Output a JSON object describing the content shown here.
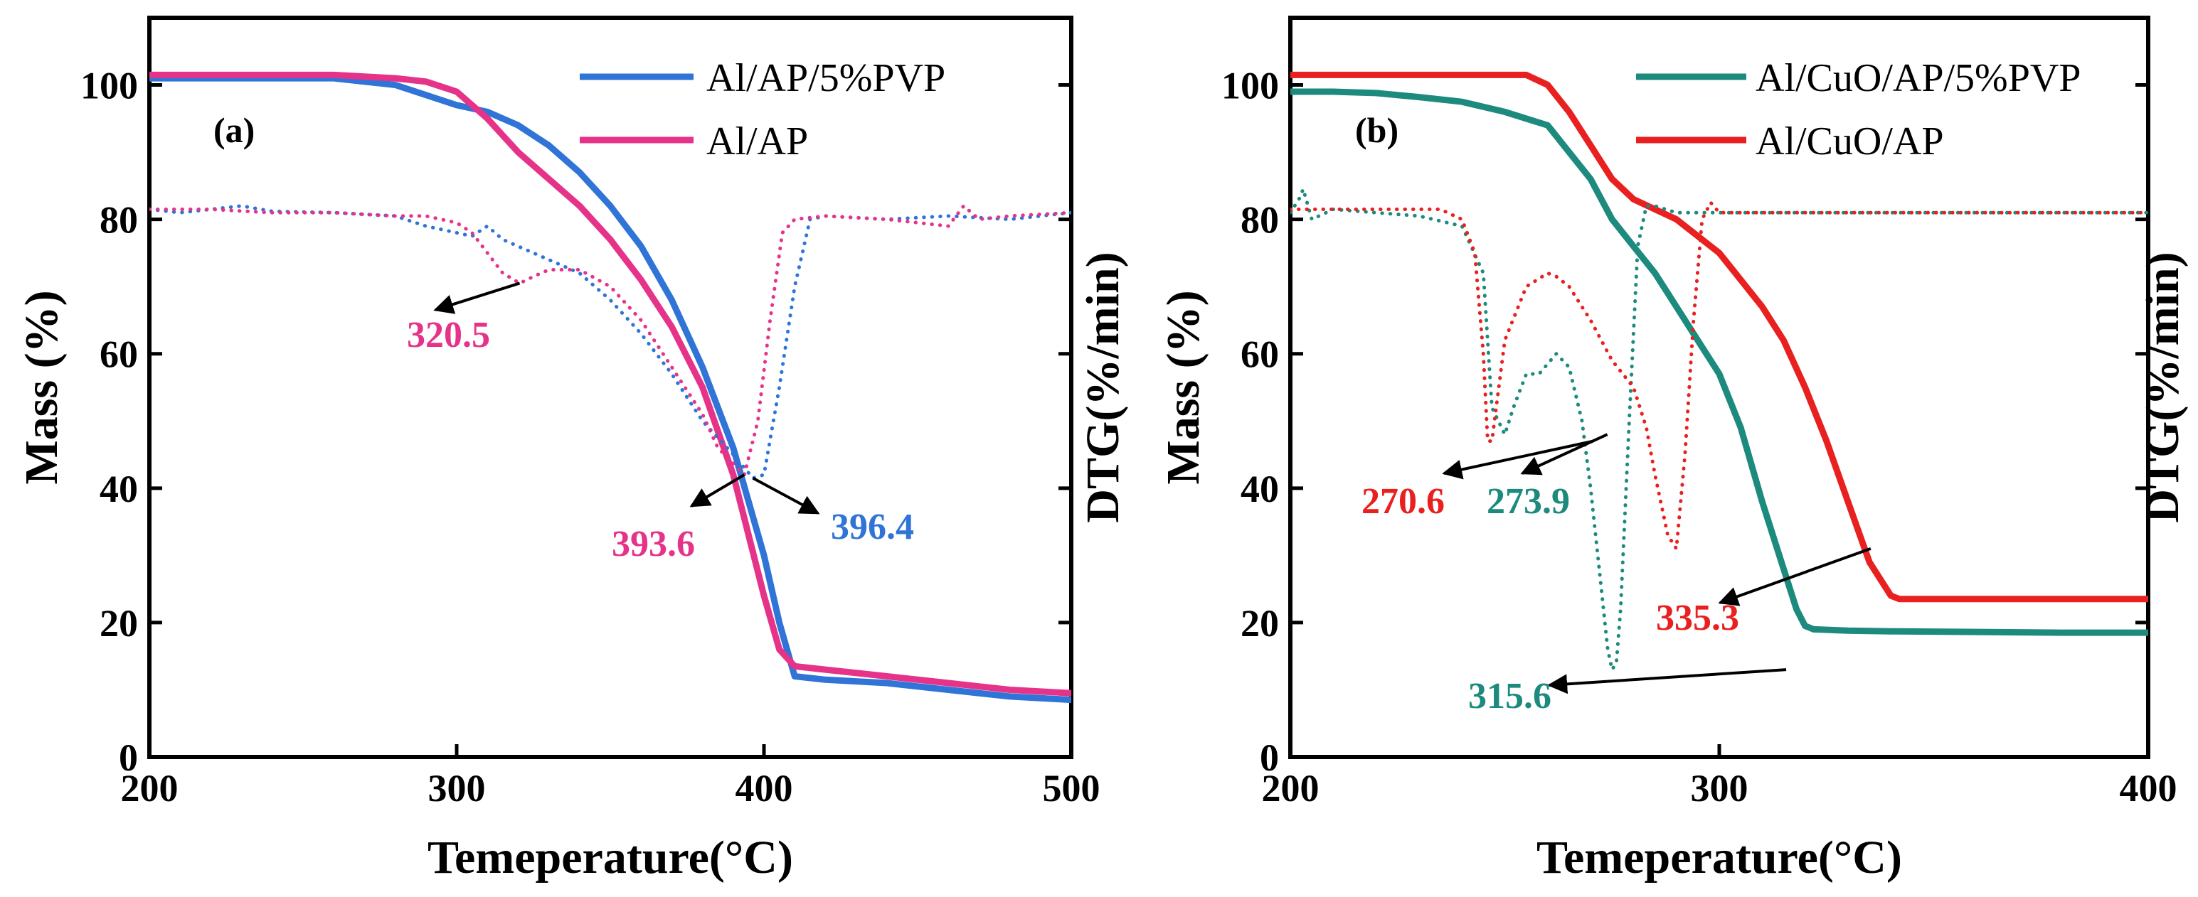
{
  "chart_data": [
    {
      "type": "line",
      "panel_label": "(a)",
      "xlabel": "Temeperature(°C)",
      "ylabel": "Mass (%)",
      "y2label": "DTG(%/min)",
      "xlim": [
        200,
        500
      ],
      "ylim": [
        0,
        110
      ],
      "xticks": [
        "200",
        "300",
        "400",
        "500"
      ],
      "yticks": [
        "0",
        "20",
        "40",
        "60",
        "80",
        "100"
      ],
      "legend_position": "top-right",
      "series": [
        {
          "name": "Al/AP/5%PVP",
          "kind": "mass",
          "style": "solid",
          "color": "#2f74d6",
          "in_legend": true,
          "x": [
            200,
            260,
            280,
            300,
            310,
            320,
            330,
            340,
            350,
            360,
            370,
            380,
            390,
            400,
            405,
            410,
            420,
            440,
            460,
            480,
            500
          ],
          "y": [
            101,
            101,
            100,
            97,
            96,
            94,
            91,
            87,
            82,
            76,
            68,
            58,
            46,
            30,
            20,
            12,
            11.5,
            11,
            10,
            9,
            8.5
          ]
        },
        {
          "name": "Al/AP",
          "kind": "mass",
          "style": "solid",
          "color": "#e6338a",
          "in_legend": true,
          "x": [
            200,
            260,
            280,
            290,
            300,
            305,
            310,
            315,
            320,
            330,
            340,
            350,
            360,
            370,
            380,
            390,
            395,
            400,
            405,
            410,
            420,
            440,
            460,
            480,
            500
          ],
          "y": [
            101.5,
            101.5,
            101,
            100.5,
            99,
            97,
            95,
            92.5,
            90,
            86,
            82,
            77,
            71,
            64,
            55,
            42,
            33,
            24,
            16,
            13.5,
            13,
            12,
            11,
            10,
            9.5
          ]
        },
        {
          "name": "Al/AP/5%PVP DTG",
          "kind": "dtg",
          "style": "dotted",
          "color": "#2f74d6",
          "in_legend": false,
          "x": [
            200,
            210,
            220,
            230,
            240,
            260,
            280,
            290,
            300,
            305,
            310,
            315,
            320,
            330,
            340,
            350,
            360,
            370,
            380,
            390,
            396.4,
            400,
            405,
            410,
            415,
            420,
            440,
            460,
            480,
            500
          ],
          "y": [
            81.5,
            81,
            81.5,
            82,
            81.2,
            81,
            80.5,
            79,
            78,
            77.5,
            79,
            77,
            76,
            74,
            72,
            68,
            63,
            57,
            50,
            45,
            41.5,
            42,
            55,
            70,
            80,
            80.5,
            80,
            80.5,
            80,
            81
          ]
        },
        {
          "name": "Al/AP DTG",
          "kind": "dtg",
          "style": "dotted",
          "color": "#e6338a",
          "in_legend": false,
          "x": [
            200,
            220,
            240,
            260,
            280,
            290,
            300,
            305,
            310,
            315,
            320.5,
            325,
            330,
            340,
            350,
            360,
            370,
            380,
            385,
            393.6,
            398,
            402,
            406,
            410,
            420,
            440,
            460,
            465,
            470,
            480,
            500
          ],
          "y": [
            81.5,
            81.5,
            81,
            81,
            80.5,
            80.5,
            79.5,
            78,
            75,
            72,
            70.5,
            71.5,
            72.5,
            72.5,
            70,
            65,
            58,
            51,
            46,
            42,
            50,
            65,
            78,
            80,
            80.5,
            80,
            79,
            82,
            80,
            80.5,
            81
          ]
        }
      ],
      "annotations": [
        {
          "text": "320.5",
          "color": "#e6338a",
          "x": 320.5,
          "y": 70.5
        },
        {
          "text": "393.6",
          "color": "#e6338a",
          "x": 393.6,
          "y": 42
        },
        {
          "text": "396.4",
          "color": "#2f74d6",
          "x": 396.4,
          "y": 41.5
        }
      ]
    },
    {
      "type": "line",
      "panel_label": "(b)",
      "xlabel": "Temeperature(°C)",
      "ylabel": "Mass (%)",
      "y2label": "DTG(%/min)",
      "xlim": [
        200,
        400
      ],
      "ylim": [
        0,
        110
      ],
      "xticks": [
        "200",
        "300",
        "400"
      ],
      "yticks": [
        "0",
        "20",
        "40",
        "60",
        "80",
        "100"
      ],
      "legend_position": "top-right",
      "series": [
        {
          "name": "Al/CuO/AP/5%PVP",
          "kind": "mass",
          "style": "solid",
          "color": "#1d8a7e",
          "in_legend": true,
          "x": [
            200,
            210,
            220,
            230,
            240,
            250,
            260,
            265,
            270,
            275,
            280,
            285,
            290,
            295,
            300,
            305,
            310,
            315,
            318,
            320,
            322,
            330,
            340,
            360,
            380,
            400
          ],
          "y": [
            99,
            99,
            98.8,
            98.2,
            97.5,
            96,
            94,
            90,
            86,
            80,
            76,
            72,
            67,
            62,
            57,
            49,
            38,
            28,
            22,
            19.5,
            19,
            18.8,
            18.7,
            18.6,
            18.5,
            18.5
          ]
        },
        {
          "name": "Al/CuO/AP",
          "kind": "mass",
          "style": "solid",
          "color": "#e8201f",
          "in_legend": true,
          "x": [
            200,
            230,
            255,
            260,
            265,
            270,
            275,
            280,
            290,
            300,
            310,
            315,
            320,
            325,
            330,
            335,
            340,
            342,
            350,
            400
          ],
          "y": [
            101.5,
            101.5,
            101.5,
            100,
            96,
            91,
            86,
            83,
            80,
            75,
            67,
            62,
            55,
            47,
            38,
            29,
            24,
            23.5,
            23.5,
            23.5
          ]
        },
        {
          "name": "Al/CuO/AP/5%PVP DTG",
          "kind": "dtg",
          "style": "dotted",
          "color": "#1d8a7e",
          "in_legend": false,
          "x": [
            200,
            202,
            203,
            205,
            210,
            220,
            230,
            240,
            245,
            247,
            250,
            252,
            255,
            258,
            262,
            265,
            268,
            270,
            272,
            274,
            275,
            276,
            277,
            279,
            281,
            283,
            285,
            290,
            300,
            320,
            340,
            360,
            380,
            400
          ],
          "y": [
            81,
            83,
            84.5,
            80,
            81.5,
            81,
            80.5,
            79,
            72,
            52,
            48,
            52,
            57,
            57,
            60,
            58,
            50,
            40,
            28,
            16,
            13,
            14,
            22,
            50,
            76,
            82,
            82,
            81,
            81,
            81,
            81,
            81,
            81,
            81
          ]
        },
        {
          "name": "Al/CuO/AP DTG",
          "kind": "dtg",
          "style": "dotted",
          "color": "#e8201f",
          "in_legend": false,
          "x": [
            200,
            220,
            235,
            240,
            243,
            245,
            246,
            247,
            248,
            250,
            255,
            260,
            262,
            265,
            270,
            275,
            280,
            283,
            285,
            288,
            290,
            292,
            294,
            296,
            298,
            300,
            320,
            340,
            360,
            380,
            400
          ],
          "y": [
            81.5,
            81.5,
            81.5,
            80,
            75,
            60,
            47,
            47,
            52,
            62,
            70,
            72,
            71.5,
            70,
            65,
            59,
            55,
            49,
            42,
            33,
            31,
            45,
            65,
            80,
            82.5,
            81,
            81,
            81,
            81,
            81,
            81
          ]
        }
      ],
      "annotations": [
        {
          "text": "270.6",
          "color": "#e8201f",
          "x": 270.6,
          "y": 47
        },
        {
          "text": "273.9",
          "color": "#1d8a7e",
          "x": 273.9,
          "y": 48
        },
        {
          "text": "315.6",
          "color": "#1d8a7e",
          "x": 315.6,
          "y": 13
        },
        {
          "text": "335.3",
          "color": "#e8201f",
          "x": 335.3,
          "y": 31
        }
      ]
    }
  ]
}
